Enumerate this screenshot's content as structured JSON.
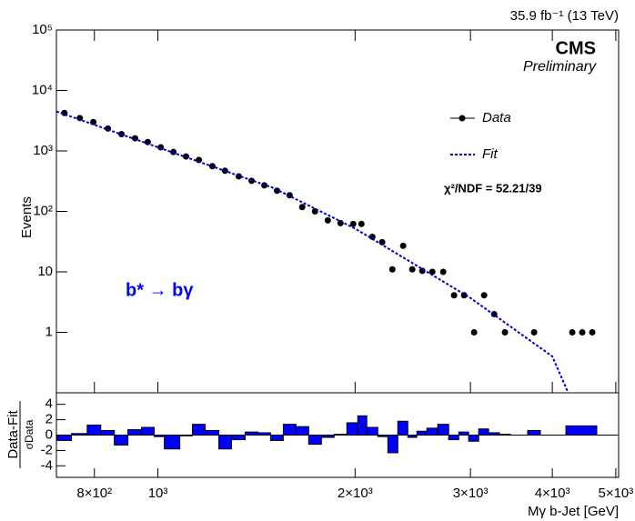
{
  "chart_data": [
    {
      "type": "scatter",
      "y_label": "Events",
      "annotations": {
        "lumi": "35.9 fb⁻¹ (13 TeV)",
        "experiment": "CMS",
        "status": "Preliminary",
        "chi2": "χ²/NDF = 52.21/39",
        "process": "b* → bγ"
      },
      "log_x": true,
      "log_y": true,
      "xlim": [
        700,
        5050
      ],
      "ylim": [
        0.1,
        100000
      ],
      "yticks": [
        {
          "value": 100000,
          "label": "10⁵"
        },
        {
          "value": 10000,
          "label": "10⁴"
        },
        {
          "value": 1000,
          "label": "10³"
        },
        {
          "value": 100,
          "label": "10²"
        },
        10,
        1
      ],
      "legend": "upper right",
      "series": [
        {
          "name": "Data",
          "color": "#000000",
          "x": [
            720,
            760,
            797,
            839,
            880,
            923,
            965,
            1010,
            1056,
            1104,
            1155,
            1211,
            1266,
            1329,
            1390,
            1454,
            1520,
            1589,
            1661,
            1737,
            1817,
            1900,
            1987,
            2045,
            2125,
            2200,
            2280,
            2368,
            2445,
            2533,
            2624,
            2726,
            2832,
            2934,
            3039,
            3148,
            3261,
            3387,
            3752,
            4291,
            4444,
            4603
          ],
          "values": [
            4240,
            3500,
            3000,
            2350,
            1900,
            1620,
            1400,
            1150,
            960,
            810,
            710,
            560,
            470,
            380,
            320,
            270,
            220,
            185,
            118,
            100,
            71,
            64,
            62,
            62,
            38,
            31,
            11,
            27,
            11,
            10.4,
            10,
            10,
            4.1,
            4.1,
            1,
            4.1,
            2,
            1,
            1,
            1,
            1,
            1
          ]
        },
        {
          "name": "Fit",
          "color": "#0000cc",
          "style": "dotted",
          "x": [
            700,
            1000,
            1500,
            2000,
            3000,
            4000,
            4230
          ],
          "values": [
            4500,
            1150,
            245,
            52,
            3.7,
            0.4,
            0.1
          ]
        }
      ]
    },
    {
      "type": "histogram",
      "y_label_top": "Data-Fit",
      "y_label_bottom": "σData",
      "x_label": "Mγ b-Jet [GeV]",
      "log_x": true,
      "color": "#0000ff",
      "xlim": [
        700,
        5050
      ],
      "ylim": [
        -5.5,
        5.5
      ],
      "yticks": [
        -4,
        -2,
        0,
        2,
        4
      ],
      "xticks": [
        {
          "value": 800,
          "label": "8×10²"
        },
        {
          "value": 1000,
          "label": "10³"
        },
        {
          "value": 2000,
          "label": "2×10³"
        },
        {
          "value": 3000,
          "label": "3×10³"
        },
        {
          "value": 4000,
          "label": "4×10³"
        },
        {
          "value": 5000,
          "label": "5×10³"
        }
      ],
      "bins": [
        702,
        738,
        780,
        818,
        858,
        900,
        944,
        987,
        1023,
        1080,
        1129,
        1181,
        1239,
        1295,
        1359,
        1421,
        1486,
        1554,
        1625,
        1699,
        1777,
        1858,
        1943,
        2019,
        2084,
        2166,
        2244,
        2324,
        2407,
        2485,
        2574,
        2674,
        2779,
        2879,
        2981,
        3088,
        3198,
        3322,
        3452,
        3668,
        3836,
        4196,
        4677
      ],
      "values": [
        -0.7,
        0.2,
        1.3,
        0.6,
        -1.3,
        0.7,
        1.0,
        -0.2,
        -1.8,
        -0.1,
        1.4,
        0.6,
        -1.8,
        -0.6,
        0.4,
        0.3,
        -0.7,
        1.4,
        1.1,
        -1.2,
        -0.3,
        0.1,
        1.6,
        2.5,
        1.0,
        -0.2,
        -2.3,
        1.8,
        -0.3,
        0.5,
        0.9,
        1.4,
        -0.6,
        0.4,
        -0.8,
        0.8,
        0.3,
        0.1,
        0.0,
        0.6,
        0.0,
        1.2
      ]
    }
  ]
}
